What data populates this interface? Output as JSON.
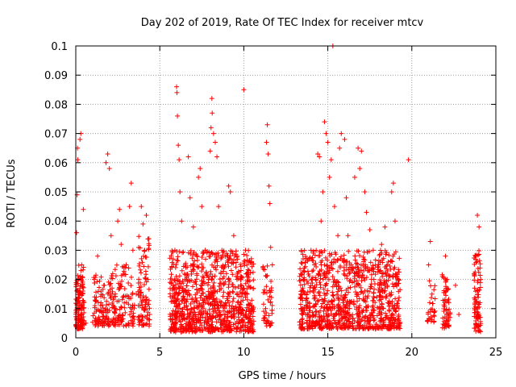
{
  "chart_data": {
    "type": "scatter",
    "title": "Day 202 of 2019, Rate Of TEC Index for receiver mtcv",
    "xlabel": "GPS time / hours",
    "ylabel": "ROTI / TECUs",
    "xlim": [
      0,
      25
    ],
    "ylim": [
      0,
      0.1
    ],
    "xticks": [
      0,
      5,
      10,
      15,
      20,
      25
    ],
    "yticks": [
      0,
      0.01,
      0.02,
      0.03,
      0.04,
      0.05,
      0.06,
      0.07,
      0.08,
      0.09,
      0.1
    ],
    "xtick_labels": [
      "0",
      "5",
      "10",
      "15",
      "20",
      "25"
    ],
    "ytick_labels": [
      "0",
      "0.01",
      "0.02",
      "0.03",
      "0.04",
      "0.05",
      "0.06",
      "0.07",
      "0.08",
      "0.09",
      "0.1"
    ],
    "grid": true,
    "marker": "+",
    "color": "#ff0000",
    "series": [
      {
        "points": [
          [
            0.05,
            0.036
          ],
          [
            0.08,
            0.049
          ],
          [
            0.1,
            0.065
          ],
          [
            0.12,
            0.061
          ],
          [
            0.15,
            0.02
          ],
          [
            0.18,
            0.01
          ],
          [
            0.22,
            0.006
          ],
          [
            0.25,
            0.068
          ],
          [
            0.3,
            0.07
          ],
          [
            0.35,
            0.025
          ],
          [
            0.4,
            0.015
          ],
          [
            0.45,
            0.044
          ],
          [
            0.3,
            0.008
          ],
          [
            0.6,
            0.005
          ],
          [
            1.1,
            0.02
          ],
          [
            1.3,
            0.028
          ],
          [
            1.5,
            0.012
          ],
          [
            1.7,
            0.018
          ],
          [
            1.8,
            0.06
          ],
          [
            1.9,
            0.063
          ],
          [
            2.0,
            0.058
          ],
          [
            2.1,
            0.035
          ],
          [
            2.2,
            0.022
          ],
          [
            2.3,
            0.009
          ],
          [
            2.5,
            0.04
          ],
          [
            2.6,
            0.044
          ],
          [
            2.7,
            0.032
          ],
          [
            2.8,
            0.014
          ],
          [
            3.0,
            0.025
          ],
          [
            3.2,
            0.045
          ],
          [
            3.3,
            0.053
          ],
          [
            3.4,
            0.03
          ],
          [
            3.6,
            0.015
          ],
          [
            3.8,
            0.006
          ],
          [
            3.9,
            0.045
          ],
          [
            4.0,
            0.039
          ],
          [
            4.1,
            0.03
          ],
          [
            4.2,
            0.042
          ],
          [
            4.3,
            0.02
          ],
          [
            4.4,
            0.008
          ],
          [
            5.7,
            0.019
          ],
          [
            5.8,
            0.027
          ],
          [
            5.9,
            0.03
          ],
          [
            6.0,
            0.086
          ],
          [
            6.02,
            0.084
          ],
          [
            6.05,
            0.076
          ],
          [
            6.1,
            0.066
          ],
          [
            6.15,
            0.061
          ],
          [
            6.2,
            0.05
          ],
          [
            6.3,
            0.04
          ],
          [
            6.5,
            0.02
          ],
          [
            6.7,
            0.062
          ],
          [
            6.8,
            0.048
          ],
          [
            7.0,
            0.038
          ],
          [
            7.2,
            0.022
          ],
          [
            7.3,
            0.055
          ],
          [
            7.4,
            0.058
          ],
          [
            7.5,
            0.045
          ],
          [
            7.7,
            0.03
          ],
          [
            7.9,
            0.02
          ],
          [
            8.0,
            0.064
          ],
          [
            8.05,
            0.072
          ],
          [
            8.1,
            0.082
          ],
          [
            8.12,
            0.077
          ],
          [
            8.2,
            0.07
          ],
          [
            8.3,
            0.067
          ],
          [
            8.4,
            0.062
          ],
          [
            8.5,
            0.045
          ],
          [
            8.7,
            0.03
          ],
          [
            8.9,
            0.025
          ],
          [
            9.1,
            0.052
          ],
          [
            9.2,
            0.05
          ],
          [
            9.4,
            0.035
          ],
          [
            9.6,
            0.028
          ],
          [
            9.8,
            0.02
          ],
          [
            10.0,
            0.085
          ],
          [
            10.1,
            0.03
          ],
          [
            10.2,
            0.015
          ],
          [
            10.4,
            0.008
          ],
          [
            10.5,
            0.005
          ],
          [
            11.3,
            0.01
          ],
          [
            11.35,
            0.067
          ],
          [
            11.4,
            0.073
          ],
          [
            11.45,
            0.063
          ],
          [
            11.5,
            0.052
          ],
          [
            11.55,
            0.046
          ],
          [
            11.6,
            0.031
          ],
          [
            11.7,
            0.025
          ],
          [
            11.5,
            0.005
          ],
          [
            13.4,
            0.015
          ],
          [
            13.6,
            0.02
          ],
          [
            13.8,
            0.008
          ],
          [
            14.0,
            0.03
          ],
          [
            14.2,
            0.025
          ],
          [
            14.4,
            0.063
          ],
          [
            14.5,
            0.062
          ],
          [
            14.6,
            0.04
          ],
          [
            14.7,
            0.05
          ],
          [
            14.8,
            0.074
          ],
          [
            14.9,
            0.07
          ],
          [
            15.0,
            0.067
          ],
          [
            15.1,
            0.055
          ],
          [
            15.2,
            0.061
          ],
          [
            15.3,
            0.1
          ],
          [
            15.4,
            0.045
          ],
          [
            15.6,
            0.035
          ],
          [
            15.7,
            0.065
          ],
          [
            15.8,
            0.07
          ],
          [
            16.0,
            0.068
          ],
          [
            16.1,
            0.048
          ],
          [
            16.2,
            0.035
          ],
          [
            16.4,
            0.025
          ],
          [
            16.6,
            0.055
          ],
          [
            16.8,
            0.065
          ],
          [
            16.9,
            0.058
          ],
          [
            17.0,
            0.064
          ],
          [
            17.2,
            0.05
          ],
          [
            17.3,
            0.043
          ],
          [
            17.5,
            0.037
          ],
          [
            17.7,
            0.03
          ],
          [
            18.0,
            0.025
          ],
          [
            18.2,
            0.032
          ],
          [
            18.4,
            0.038
          ],
          [
            18.6,
            0.026
          ],
          [
            18.8,
            0.05
          ],
          [
            18.9,
            0.053
          ],
          [
            19.0,
            0.04
          ],
          [
            19.2,
            0.02
          ],
          [
            19.8,
            0.061
          ],
          [
            21.0,
            0.025
          ],
          [
            21.1,
            0.033
          ],
          [
            21.2,
            0.015
          ],
          [
            22.0,
            0.028
          ],
          [
            22.1,
            0.02
          ],
          [
            22.2,
            0.012
          ],
          [
            22.6,
            0.018
          ],
          [
            22.8,
            0.008
          ],
          [
            23.8,
            0.028
          ],
          [
            23.9,
            0.042
          ],
          [
            24.0,
            0.038
          ],
          [
            24.1,
            0.02
          ]
        ]
      }
    ],
    "dense_clusters": [
      {
        "x_range": [
          0.0,
          0.5
        ],
        "y_range": [
          0.003,
          0.025
        ],
        "count": 140
      },
      {
        "x_range": [
          1.0,
          2.3
        ],
        "y_range": [
          0.004,
          0.022
        ],
        "count": 120
      },
      {
        "x_range": [
          2.3,
          3.5
        ],
        "y_range": [
          0.004,
          0.025
        ],
        "count": 100
      },
      {
        "x_range": [
          3.7,
          4.4
        ],
        "y_range": [
          0.004,
          0.035
        ],
        "count": 90
      },
      {
        "x_range": [
          5.6,
          10.6
        ],
        "y_range": [
          0.002,
          0.03
        ],
        "count": 900
      },
      {
        "x_range": [
          11.1,
          11.7
        ],
        "y_range": [
          0.004,
          0.025
        ],
        "count": 50
      },
      {
        "x_range": [
          13.3,
          19.3
        ],
        "y_range": [
          0.003,
          0.03
        ],
        "count": 950
      },
      {
        "x_range": [
          20.9,
          21.4
        ],
        "y_range": [
          0.005,
          0.02
        ],
        "count": 30
      },
      {
        "x_range": [
          21.8,
          22.3
        ],
        "y_range": [
          0.003,
          0.022
        ],
        "count": 60
      },
      {
        "x_range": [
          23.7,
          24.1
        ],
        "y_range": [
          0.002,
          0.03
        ],
        "count": 90
      }
    ]
  }
}
